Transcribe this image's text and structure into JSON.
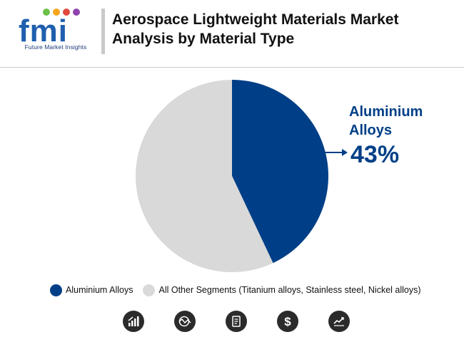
{
  "header": {
    "logo_text": "fmi",
    "logo_tagline": "Future Market Insights",
    "title_line1": "Aerospace Lightweight Materials Market",
    "title_line2": "Analysis by Material Type"
  },
  "callout": {
    "label_line1": "Aluminium",
    "label_line2": "Alloys",
    "value": "43%"
  },
  "legend": [
    {
      "label": "Aluminium Alloys",
      "color": "#003f87"
    },
    {
      "label": "All Other Segments (Titanium alloys, Stainless steel, Nickel alloys)",
      "color": "#d9d9d9"
    }
  ],
  "footer_icons": [
    "bar-chart-icon",
    "globe-trend-icon",
    "document-icon",
    "dollar-icon",
    "line-chart-icon"
  ],
  "chart_data": {
    "type": "pie",
    "slices": [
      {
        "label": "Aluminium Alloys",
        "value": 43,
        "color": "#003f87"
      },
      {
        "label": "All Other Segments (Titanium alloys, Stainless steel, Nickel alloys)",
        "value": 57,
        "color": "#d9d9d9"
      }
    ],
    "legend_position": "bottom"
  }
}
